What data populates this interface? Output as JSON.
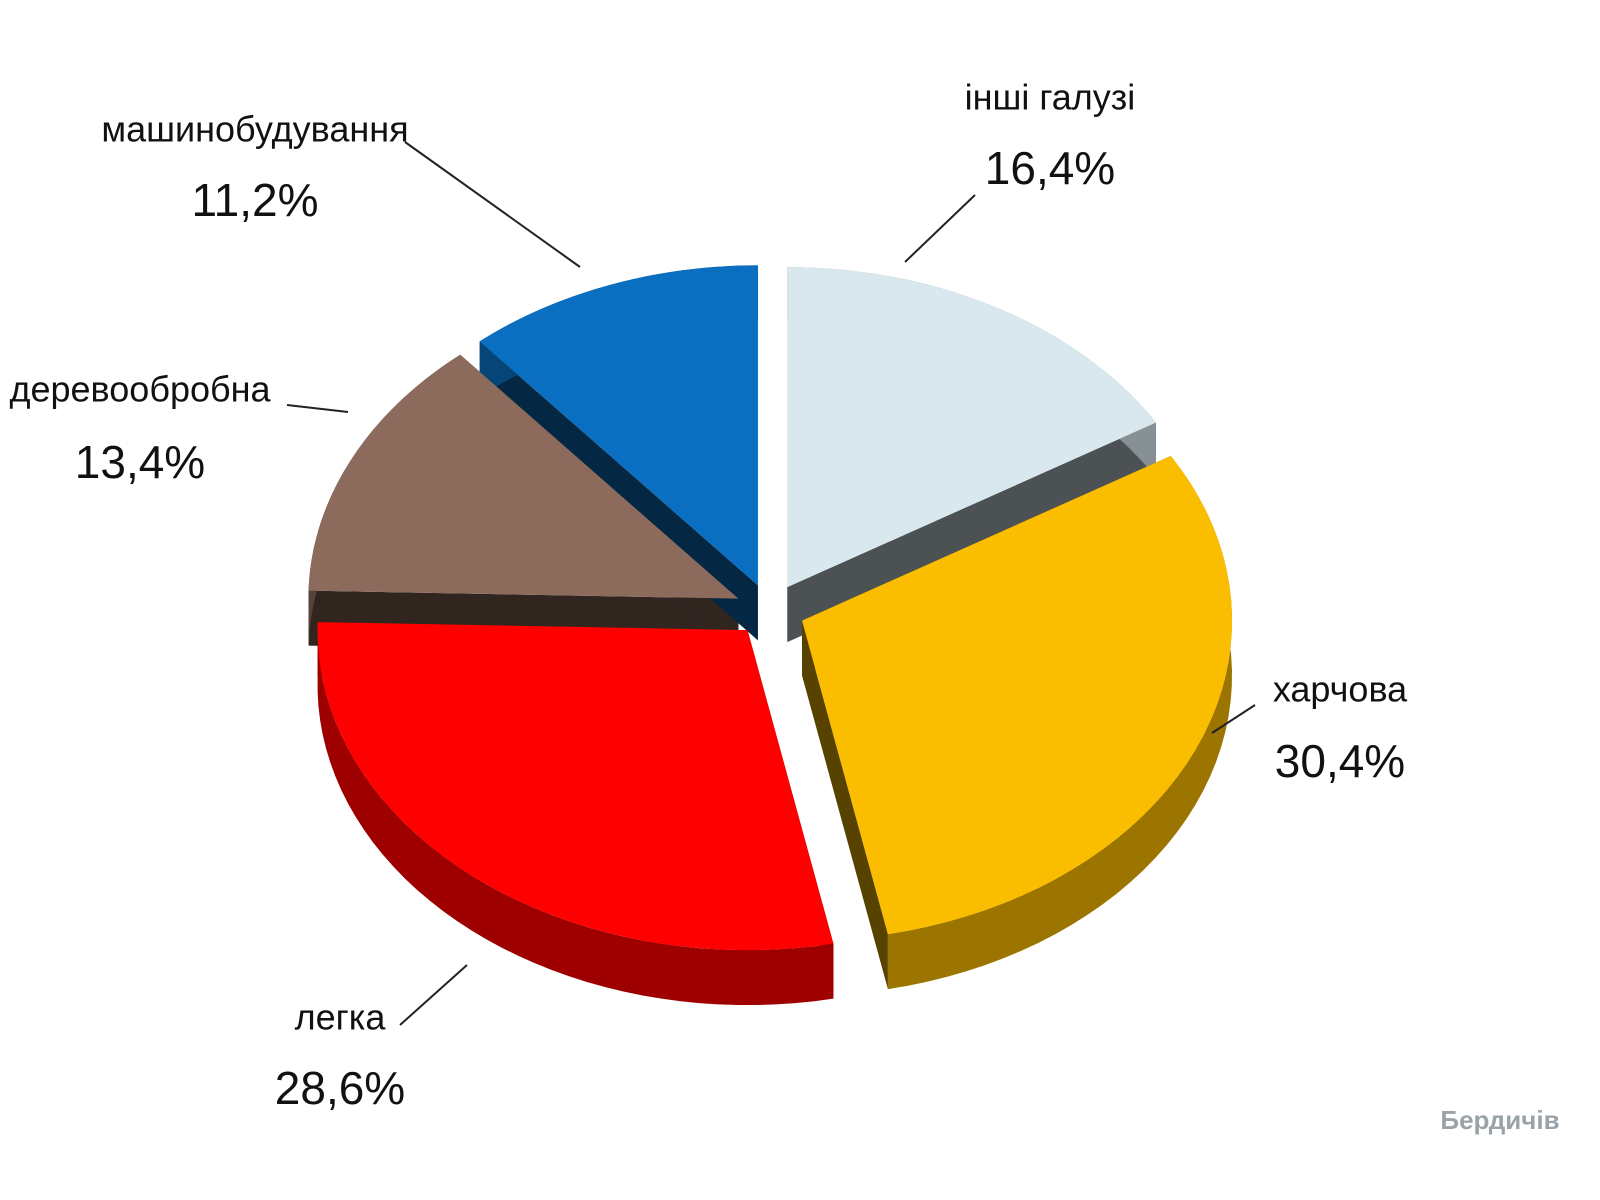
{
  "chart_data": {
    "type": "pie",
    "categories": [
      "інші галузі",
      "харчова",
      "легка",
      "деревообробна",
      "машинобудування"
    ],
    "values": [
      16.4,
      30.4,
      28.6,
      13.4,
      11.2
    ],
    "value_labels": [
      "16,4%",
      "30,4%",
      "28,6%",
      "13,4%",
      "11,2%"
    ],
    "colors": [
      "#d9e8ee",
      "#fbbd00",
      "#ff0000",
      "#8c6b5c",
      "#0a6fc0"
    ]
  },
  "logo": "Бердичів"
}
